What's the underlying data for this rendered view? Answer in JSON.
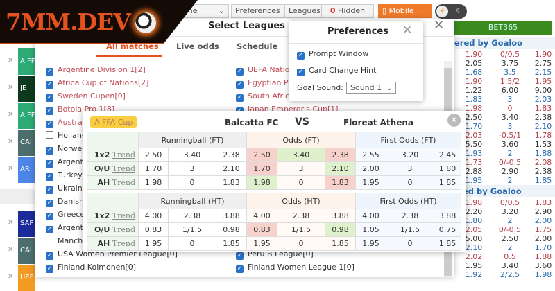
{
  "logo": {
    "text": "7MM.DEV"
  },
  "toolbar": {
    "time": "ime",
    "preferences": "Preferences",
    "leagues": "Leagues",
    "hidden_count": "0",
    "hidden": "Hidden",
    "mobile": "Mobile",
    "accent": "#ef7a2a"
  },
  "strip": [
    {
      "label": "A FF",
      "color": "#2eaa77"
    },
    {
      "label": "JE",
      "color": "#0d3a1e"
    },
    {
      "label": "A FF",
      "color": "#2eaa77"
    },
    {
      "label": "CAI",
      "color": "#4d6e6e"
    },
    {
      "label": "AR",
      "color": "#4d86e6"
    },
    {
      "label": "",
      "color": "#ffffff"
    },
    {
      "label": "SAP",
      "color": "#1d2a9a"
    },
    {
      "label": "CAI",
      "color": "#4d6e6e"
    },
    {
      "label": "UEF",
      "color": "#f29a22"
    }
  ],
  "select_leagues": {
    "title": "Select Leagues",
    "tabs": [
      "All matches",
      "Live odds",
      "Schedule"
    ],
    "left": [
      {
        "name": "Argentine Division 1[2]",
        "checked": true,
        "red": true
      },
      {
        "name": "Africa Cup of Nations[2]",
        "checked": true,
        "red": true
      },
      {
        "name": "Sweden Cupen[0]",
        "checked": true,
        "red": true
      },
      {
        "name": "Botola Pro 1[8]",
        "checked": true,
        "red": true
      },
      {
        "name": "Australi",
        "checked": true,
        "red": true
      },
      {
        "name": "Hollanc",
        "checked": false
      },
      {
        "name": "Norweg",
        "checked": true
      },
      {
        "name": "Argenti",
        "checked": true
      },
      {
        "name": "Turkey",
        "checked": true
      },
      {
        "name": "Ukraine",
        "checked": true
      },
      {
        "name": "Danish",
        "checked": true
      },
      {
        "name": "Greece",
        "checked": true
      },
      {
        "name": "Argenti",
        "checked": true
      },
      {
        "name": "Manche",
        "checked": null
      },
      {
        "name": "USA Women Premier League[0]",
        "checked": true
      },
      {
        "name": "Finland Kolmonen[0]",
        "checked": true
      }
    ],
    "right": [
      {
        "name": "UEFA Nations",
        "checked": true,
        "red": true,
        "row": 0
      },
      {
        "name": "Egyptian Pre",
        "checked": true,
        "red": true,
        "row": 1
      },
      {
        "name": "South Africa",
        "checked": true,
        "red": true,
        "row": 2
      },
      {
        "name": "Japan Emperor's Cup[1]",
        "checked": true,
        "red": true,
        "row": 3
      },
      {
        "name": "Peru B League[0]",
        "checked": true,
        "row": 14
      },
      {
        "name": "Finland Women League 1[0]",
        "checked": true,
        "row": 15
      }
    ]
  },
  "preferences": {
    "title": "Preferences",
    "prompt_window": "Prompt Window",
    "card_change_hint": "Card Change Hint",
    "goal_sound_label": "Goal Sound:",
    "goal_sound_value": "Sound 1"
  },
  "odds_panel": {
    "bookmaker": "BET365",
    "powered": "ered by Goaloo",
    "powered2": "ed by Goaloo",
    "rows": [
      [
        "1.90",
        "0/0.5",
        "1.90"
      ],
      [
        "2.05",
        "3.75",
        "2.75"
      ],
      [
        "1.68",
        "3.5",
        "2.15"
      ],
      [
        "1.90",
        "1.5/2",
        "1.95"
      ],
      [
        "1.22",
        "6.00",
        "9.00"
      ],
      [
        "1.83",
        "3",
        "2.03"
      ],
      [
        "1.98",
        "0",
        "1.83"
      ],
      [
        "2.50",
        "3.40",
        "2.38"
      ],
      [
        "1.70",
        "3",
        "2.10"
      ],
      [
        "2.03",
        "-0.5/1",
        "1.78"
      ],
      [
        "5.50",
        "3.60",
        "1.53"
      ],
      [
        "1.93",
        "2",
        "1.88"
      ],
      [
        "1.73",
        "0/-0.5",
        "2.08"
      ],
      [
        "2.88",
        "2.90",
        "2.38"
      ],
      [
        "1.95",
        "2",
        "1.85"
      ]
    ],
    "rows2": [
      [
        "1.98",
        "0/0.5",
        "1.83"
      ],
      [
        "2.20",
        "3.20",
        "2.90"
      ],
      [
        "1.80",
        "2",
        "2.00"
      ],
      [
        "2.05",
        "0/-0.5",
        "1.75"
      ],
      [
        "5.00",
        "2.50",
        "2.00"
      ],
      [
        "2.10",
        "2",
        "1.70"
      ],
      [
        "2.02",
        "0.5",
        "1.88"
      ],
      [
        "1.95",
        "3.40",
        "3.60"
      ],
      [
        "1.92",
        "2/2.5",
        "1.98"
      ]
    ]
  },
  "match": {
    "league": "A FFA Cup",
    "home": "Balcatta FC",
    "vs": "VS",
    "away": "Floreat Athena",
    "trend": "Trend",
    "sections": [
      {
        "headers": [
          "Runningball (FT)",
          "Odds (FT)",
          "First Odds (FT)"
        ],
        "rows": [
          {
            "label": "1x2",
            "vals": [
              "2.50",
              "3.40",
              "2.38",
              "2.50",
              "3.40",
              "2.38",
              "2.55",
              "3.20",
              "2.45"
            ],
            "hl": [
              "",
              "",
              "",
              "red",
              "green",
              "red",
              "",
              "",
              ""
            ]
          },
          {
            "label": "O/U",
            "vals": [
              "1.70",
              "3",
              "2.10",
              "1.70",
              "3",
              "2.10",
              "2.00",
              "3",
              "1.80"
            ],
            "hl": [
              "",
              "",
              "",
              "red",
              "",
              "green",
              "",
              "",
              ""
            ]
          },
          {
            "label": "AH",
            "vals": [
              "1.98",
              "0",
              "1.83",
              "1.98",
              "0",
              "1.83",
              "1.95",
              "0",
              "1.85"
            ],
            "hl": [
              "",
              "",
              "",
              "green",
              "",
              "red",
              "",
              "",
              ""
            ]
          }
        ]
      },
      {
        "headers": [
          "Runningball (HT)",
          "Odds (HT)",
          "First Odds (HT)"
        ],
        "rows": [
          {
            "label": "1x2",
            "vals": [
              "4.00",
              "2.38",
              "3.88",
              "4.00",
              "2.38",
              "3.88",
              "4.00",
              "2.38",
              "3.88"
            ],
            "hl": [
              "",
              "",
              "",
              "",
              "",
              "",
              "",
              "",
              ""
            ]
          },
          {
            "label": "O/U",
            "vals": [
              "0.83",
              "1/1.5",
              "0.98",
              "0.83",
              "1/1.5",
              "0.98",
              "1.05",
              "1/1.5",
              "0.75"
            ],
            "hl": [
              "",
              "",
              "",
              "red",
              "",
              "green",
              "",
              "",
              ""
            ]
          },
          {
            "label": "AH",
            "vals": [
              "1.95",
              "0",
              "1.85",
              "1.95",
              "0",
              "1.85",
              "1.95",
              "0",
              "1.85"
            ],
            "hl": [
              "",
              "",
              "",
              "",
              "",
              "",
              "",
              "",
              ""
            ]
          }
        ]
      }
    ]
  }
}
